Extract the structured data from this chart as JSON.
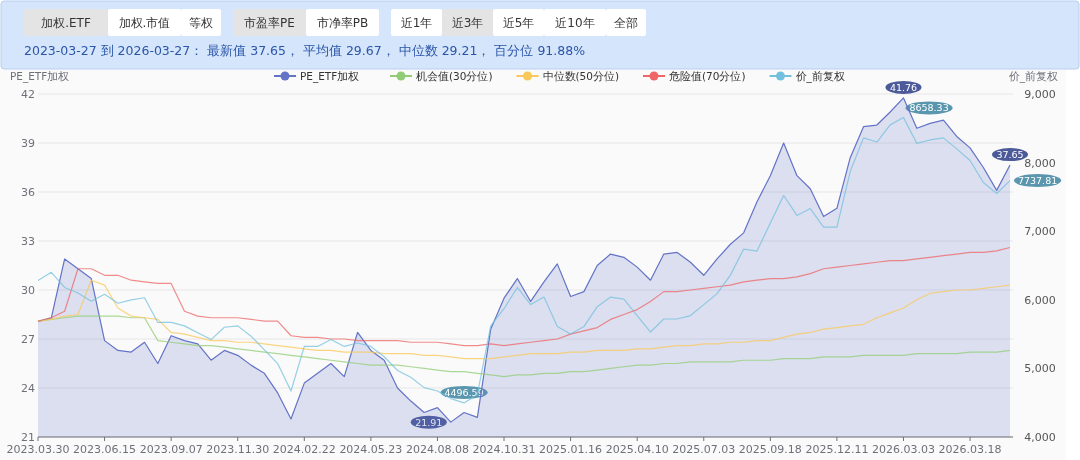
{
  "chart_data": {
    "type": "area",
    "subtitle": "2023-03-27 到 2026-03-27：  最新值 37.65，  平均值 29.67，  中位数 29.21，  百分位 91.88%",
    "annotations": [
      "加权.ETF",
      "加权.市值",
      "等权",
      "市盈率PE",
      "市净率PB",
      "近1年",
      "近3年",
      "近5年",
      "近10年",
      "全部"
    ],
    "ylabel": "PE_ETF加权",
    "y2label": "价_前复权",
    "categories": [
      "2023.03.30",
      null,
      null,
      null,
      null,
      "2023.06.15",
      null,
      null,
      null,
      null,
      "2023.09.07",
      null,
      null,
      null,
      null,
      "2023.11.30",
      null,
      null,
      null,
      null,
      "2024.02.22",
      null,
      null,
      null,
      null,
      "2024.05.23",
      null,
      null,
      null,
      null,
      "2024.08.08",
      null,
      null,
      null,
      null,
      "2024.10.31",
      null,
      null,
      null,
      null,
      "2025.01.16",
      null,
      null,
      null,
      null,
      "2025.04.10",
      null,
      null,
      null,
      null,
      "2025.07.03",
      null,
      null,
      null,
      null,
      "2025.09.18",
      null,
      null,
      null,
      null,
      "2025.12.11",
      null,
      null,
      null,
      null,
      "2026.03.03",
      null,
      null,
      null,
      null,
      "2026.03.18",
      null,
      null,
      null
    ],
    "ylim": [
      21,
      42
    ],
    "yticks": [
      21,
      24,
      27,
      30,
      33,
      36,
      39,
      42
    ],
    "y2lim": [
      4000,
      9000
    ],
    "y2ticks": [
      {
        "value": 4000,
        "label": "4,000"
      },
      {
        "value": 5000,
        "label": "5,000"
      },
      {
        "value": 6000,
        "label": "6,000"
      },
      {
        "value": 7000,
        "label": "7,000"
      },
      {
        "value": 8000,
        "label": "8,000"
      },
      {
        "value": 9000,
        "label": "9,000"
      }
    ],
    "grid": "y",
    "legend": "top",
    "marker": "none",
    "line_style": "solid",
    "series": [
      {
        "name": "PE_ETF加权",
        "color": "#6373c6",
        "values": [
          28.06,
          28.3,
          31.9,
          31.3,
          30.7,
          26.9,
          26.3,
          26.2,
          26.8,
          25.5,
          27.2,
          26.9,
          26.7,
          25.7,
          26.3,
          26.0,
          25.4,
          24.9,
          23.7,
          22.1,
          24.3,
          24.9,
          25.5,
          24.7,
          27.4,
          26.3,
          25.7,
          24.0,
          23.2,
          22.5,
          22.8,
          21.91,
          22.5,
          22.2,
          27.6,
          29.5,
          30.7,
          29.3,
          30.5,
          31.6,
          29.6,
          29.9,
          31.5,
          32.2,
          32.0,
          31.4,
          30.6,
          32.2,
          32.3,
          31.7,
          30.9,
          31.9,
          32.8,
          33.5,
          35.4,
          37.0,
          39.0,
          37.0,
          36.2,
          34.5,
          35.0,
          38.1,
          40.0,
          40.1,
          40.9,
          41.76,
          39.9,
          40.2,
          40.4,
          39.4,
          38.7,
          37.5,
          36.1,
          37.65
        ],
        "value_labels": [
          null,
          null,
          null,
          null,
          null,
          null,
          null,
          null,
          null,
          null,
          null,
          null,
          null,
          null,
          null,
          null,
          null,
          null,
          null,
          null,
          null,
          null,
          null,
          null,
          null,
          null,
          null,
          null,
          null,
          null,
          null,
          "21.91",
          null,
          null,
          null,
          null,
          null,
          null,
          null,
          null,
          null,
          null,
          null,
          null,
          null,
          null,
          null,
          null,
          null,
          null,
          null,
          null,
          null,
          null,
          null,
          null,
          null,
          null,
          null,
          null,
          null,
          null,
          null,
          null,
          null,
          "41.76",
          null,
          null,
          null,
          null,
          null,
          null,
          null,
          "37.65"
        ]
      },
      {
        "name": "机会值(30分位)",
        "type": "line",
        "color": "#91cc75",
        "values": [
          28.1,
          28.2,
          28.3,
          28.4,
          28.4,
          28.4,
          28.4,
          28.3,
          28.3,
          26.9,
          26.8,
          26.7,
          26.6,
          26.6,
          26.5,
          26.4,
          26.3,
          26.2,
          26.1,
          26.0,
          25.9,
          25.8,
          25.7,
          25.6,
          25.5,
          25.4,
          25.4,
          25.4,
          25.3,
          25.2,
          25.1,
          25.0,
          25.0,
          24.9,
          24.8,
          24.7,
          24.8,
          24.8,
          24.9,
          24.9,
          25.0,
          25.0,
          25.1,
          25.2,
          25.3,
          25.4,
          25.4,
          25.5,
          25.5,
          25.6,
          25.6,
          25.6,
          25.6,
          25.7,
          25.7,
          25.7,
          25.8,
          25.8,
          25.8,
          25.9,
          25.9,
          25.9,
          26.0,
          26.0,
          26.0,
          26.0,
          26.1,
          26.1,
          26.1,
          26.1,
          26.2,
          26.2,
          26.2,
          26.3
        ]
      },
      {
        "name": "中位数(50分位)",
        "type": "line",
        "color": "#fac858",
        "values": [
          28.1,
          28.2,
          28.4,
          28.5,
          30.6,
          30.3,
          28.9,
          28.4,
          28.3,
          28.2,
          27.4,
          27.3,
          27.1,
          26.9,
          26.9,
          26.8,
          26.8,
          26.7,
          26.6,
          26.5,
          26.4,
          26.3,
          26.3,
          26.2,
          26.2,
          26.2,
          26.1,
          26.1,
          26.1,
          26.0,
          26.0,
          25.9,
          25.8,
          25.8,
          25.8,
          25.9,
          26.0,
          26.1,
          26.1,
          26.1,
          26.2,
          26.2,
          26.3,
          26.3,
          26.3,
          26.4,
          26.4,
          26.5,
          26.6,
          26.6,
          26.7,
          26.7,
          26.8,
          26.8,
          26.9,
          26.9,
          27.1,
          27.3,
          27.4,
          27.6,
          27.7,
          27.8,
          27.9,
          28.3,
          28.6,
          28.9,
          29.4,
          29.8,
          29.9,
          30.0,
          30.0,
          30.1,
          30.2,
          30.3
        ]
      },
      {
        "name": "危险值(70分位)",
        "type": "line",
        "color": "#ee6666",
        "values": [
          28.1,
          28.3,
          28.7,
          31.3,
          31.3,
          30.9,
          30.9,
          30.6,
          30.5,
          30.4,
          30.4,
          28.7,
          28.4,
          28.3,
          28.3,
          28.3,
          28.2,
          28.1,
          28.1,
          27.2,
          27.1,
          27.1,
          27.0,
          27.0,
          26.9,
          26.9,
          26.9,
          26.9,
          26.8,
          26.8,
          26.8,
          26.7,
          26.6,
          26.6,
          26.7,
          26.6,
          26.7,
          26.8,
          26.9,
          27.0,
          27.3,
          27.5,
          27.7,
          28.2,
          28.5,
          28.8,
          29.3,
          29.9,
          29.9,
          30.0,
          30.1,
          30.2,
          30.3,
          30.5,
          30.6,
          30.7,
          30.7,
          30.8,
          31.0,
          31.3,
          31.4,
          31.5,
          31.6,
          31.7,
          31.8,
          31.8,
          31.9,
          32.0,
          32.1,
          32.2,
          32.3,
          32.3,
          32.4,
          32.6
        ]
      },
      {
        "name": "价_前复权",
        "type": "line",
        "axis": "y2",
        "color": "#73c0de",
        "values": [
          6280,
          6400,
          6180,
          6100,
          5980,
          6080,
          5950,
          6000,
          6030,
          5670,
          5670,
          5620,
          5520,
          5420,
          5600,
          5620,
          5470,
          5270,
          5070,
          4670,
          5320,
          5320,
          5420,
          5320,
          5370,
          5320,
          5170,
          4970,
          4870,
          4720,
          4670,
          4560,
          4496.59,
          4620,
          5620,
          5870,
          6180,
          5930,
          6040,
          5610,
          5500,
          5610,
          5900,
          6040,
          6010,
          5770,
          5530,
          5720,
          5720,
          5770,
          5930,
          6090,
          6360,
          6740,
          6710,
          7120,
          7520,
          7230,
          7330,
          7060,
          7060,
          7870,
          8360,
          8300,
          8550,
          8658.33,
          8280,
          8330,
          8360,
          8200,
          8030,
          7710,
          7550,
          7737.81
        ],
        "value_labels": [
          null,
          null,
          null,
          null,
          null,
          null,
          null,
          null,
          null,
          null,
          null,
          null,
          null,
          null,
          null,
          null,
          null,
          null,
          null,
          null,
          null,
          null,
          null,
          null,
          null,
          null,
          null,
          null,
          null,
          null,
          null,
          null,
          "4496.59",
          null,
          null,
          null,
          null,
          null,
          null,
          null,
          null,
          null,
          null,
          null,
          null,
          null,
          null,
          null,
          null,
          null,
          null,
          null,
          null,
          null,
          null,
          null,
          null,
          null,
          null,
          null,
          null,
          null,
          null,
          null,
          null,
          "8658.33",
          null,
          null,
          null,
          null,
          null,
          null,
          null,
          "7737.81"
        ]
      }
    ]
  }
}
